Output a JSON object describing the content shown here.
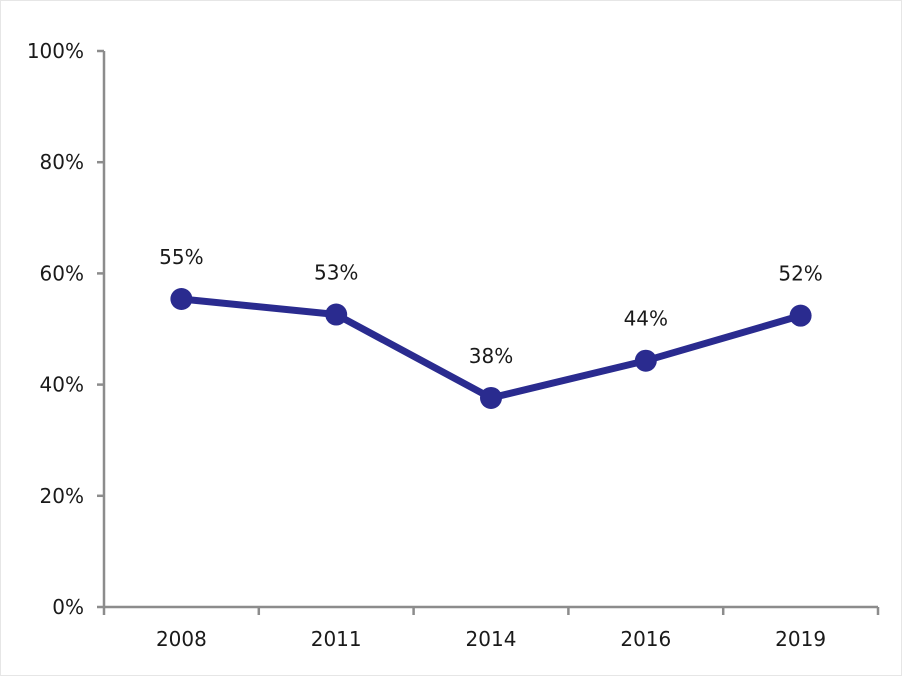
{
  "chart_data": {
    "type": "line",
    "title": "",
    "xlabel": "",
    "ylabel": "",
    "categories": [
      "2008",
      "2011",
      "2014",
      "2016",
      "2019"
    ],
    "series": [
      {
        "values": [
          55.4,
          52.6,
          37.6,
          44.3,
          52.4
        ],
        "data_labels": [
          "55%",
          "53%",
          "38%",
          "44%",
          "52%"
        ],
        "color": "#2a2b8f"
      }
    ],
    "ylim": [
      0,
      100
    ],
    "y_ticks": [
      0,
      20,
      40,
      60,
      80,
      100
    ],
    "y_tick_labels": [
      "0%",
      "20%",
      "40%",
      "60%",
      "80%",
      "100%"
    ],
    "grid": false,
    "legend": "none",
    "axis_color": "#8c8c8c"
  }
}
